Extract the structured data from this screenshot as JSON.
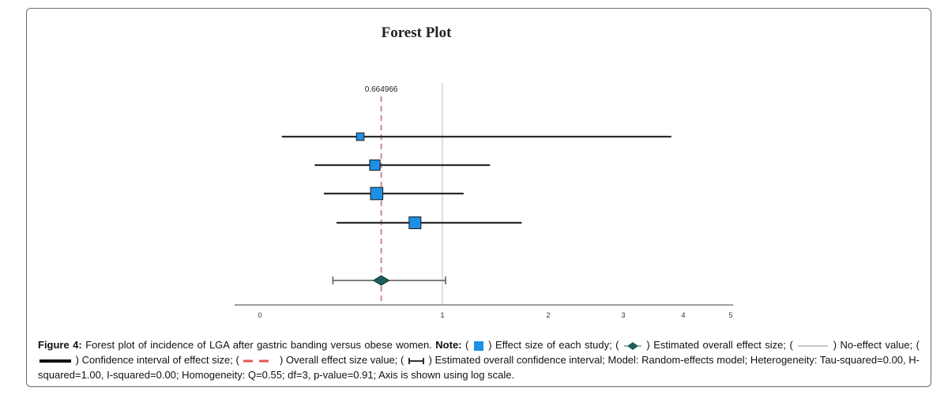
{
  "chart_data": {
    "type": "forest",
    "title": "Forest Plot",
    "scale": "log",
    "x_ticks": [
      0,
      1,
      2,
      3,
      4,
      5
    ],
    "no_effect_value": 1,
    "overall_effect": 0.664966,
    "overall_effect_label": "0.664966",
    "overall_ci": [
      0.4,
      1.03
    ],
    "studies": [
      {
        "estimate": 0.55,
        "ci": [
          0.12,
          3.8
        ],
        "weight": 0.3
      },
      {
        "estimate": 0.63,
        "ci": [
          0.3,
          1.45
        ],
        "weight": 0.6
      },
      {
        "estimate": 0.64,
        "ci": [
          0.35,
          1.2
        ],
        "weight": 0.8
      },
      {
        "estimate": 0.85,
        "ci": [
          0.42,
          1.75
        ],
        "weight": 0.75
      }
    ],
    "colors": {
      "study_box": "#1e90e6",
      "overall_diamond": "#1f5f5a",
      "overall_line": "#c98a86",
      "no_effect_line": "#c8c8c8",
      "ci_line": "#2b2b2b"
    }
  },
  "caption": {
    "label": "Figure 4:",
    "text1": " Forest plot of incidence of LGA after gastric banding versus obese women. ",
    "note": "Note:",
    "text2": " ( ",
    "t_effect": " ) Effect size of each study; ( ",
    "t_overall": " ) Estimated overall effect size; ( ",
    "t_noeffect": " ) No-effect value; ( ",
    "t_ci": " ) Confidence interval of effect size;   ( ",
    "t_overallval": " ) Overall effect size value; ( ",
    "t_rest": " ) Estimated overall confidence interval; Model: Random-effects model; Heterogeneity: Tau-squared=0.00, H-squared=1.00, I-squared=0.00; Homogeneity: Q=0.55; df=3, p-value=0.91; Axis is shown using log scale."
  }
}
